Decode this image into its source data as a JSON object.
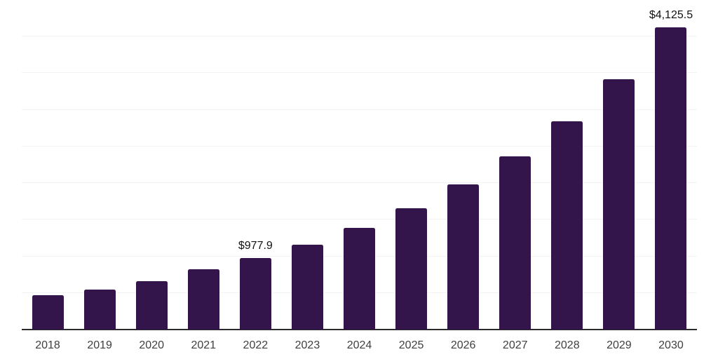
{
  "chart_data": {
    "type": "bar",
    "title": "",
    "xlabel": "",
    "ylabel": "",
    "categories": [
      "2018",
      "2019",
      "2020",
      "2021",
      "2022",
      "2023",
      "2024",
      "2025",
      "2026",
      "2027",
      "2028",
      "2029",
      "2030"
    ],
    "values": [
      465,
      548,
      658,
      823,
      977.9,
      1160,
      1385,
      1660,
      1985,
      2365,
      2840,
      3420,
      4125.5
    ],
    "value_labels": [
      "",
      "",
      "",
      "",
      "$977.9",
      "",
      "",
      "",
      "",
      "",
      "",
      "",
      "$4,125.5"
    ],
    "ylim": [
      0,
      4500
    ],
    "grid_step": 500,
    "grid": true,
    "legend": false,
    "colors": {
      "bar": "#33154B",
      "grid": "#f3f3f3",
      "axis": "#2b2b2b",
      "tick_label": "#3f3f3f",
      "value_label": "#111111",
      "background": "#ffffff"
    }
  }
}
